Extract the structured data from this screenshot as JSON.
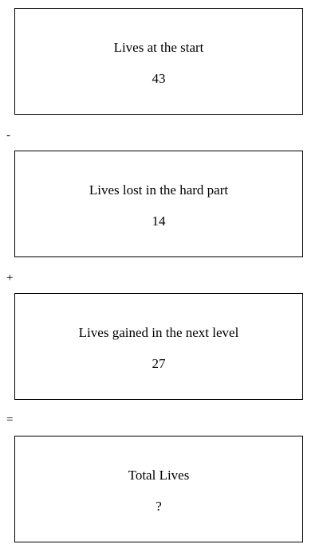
{
  "steps": [
    {
      "label": "Lives at the start",
      "value": "43"
    },
    {
      "label": "Lives lost in the hard part",
      "value": "14"
    },
    {
      "label": "Lives gained in the next level",
      "value": "27"
    },
    {
      "label": "Total Lives",
      "value": "?"
    }
  ],
  "operators": [
    "-",
    "+",
    "="
  ]
}
